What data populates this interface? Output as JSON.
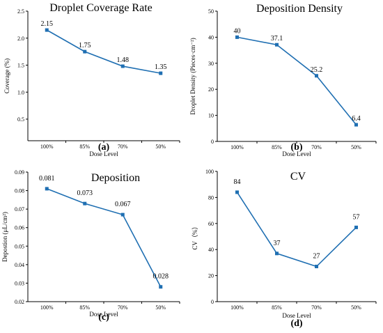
{
  "chart_data": [
    {
      "type": "line",
      "panel_label": "(a)",
      "title": "Droplet Coverage Rate",
      "xlabel": "Dose Level",
      "ylabel": "Coverage (%)",
      "categories": [
        "100%",
        "85%",
        "70%",
        "50%"
      ],
      "values": [
        2.15,
        1.75,
        1.48,
        1.35
      ],
      "data_labels": [
        "2.15",
        "1.75",
        "1.48",
        "1.35"
      ],
      "ylim": [
        0.1,
        2.5
      ],
      "yticks": [
        "0.5",
        "1.0",
        "1.5",
        "2.0",
        "2.5"
      ],
      "color": "#1f6fb2",
      "grid": false
    },
    {
      "type": "line",
      "panel_label": "(b)",
      "title": "Deposition Density",
      "xlabel": "Dose Level",
      "ylabel": "Droplet Density (Pieces·cm⁻²)",
      "categories": [
        "100%",
        "85%",
        "70%",
        "50%"
      ],
      "values": [
        40,
        37.1,
        25.2,
        6.4
      ],
      "data_labels": [
        "40",
        "37.1",
        "25.2",
        "6.4"
      ],
      "ylim": [
        0,
        50
      ],
      "yticks": [
        "0",
        "10",
        "20",
        "30",
        "40",
        "50"
      ],
      "color": "#1f6fb2",
      "grid": false
    },
    {
      "type": "line",
      "panel_label": "(c)",
      "title": "Deposition",
      "xlabel": "Dose Level",
      "ylabel": "Depostion (μL/cm²)",
      "categories": [
        "100%",
        "85%",
        "70%",
        "50%"
      ],
      "values": [
        0.081,
        0.073,
        0.067,
        0.028
      ],
      "data_labels": [
        "0.081",
        "0.073",
        "0.067",
        "0.028"
      ],
      "ylim": [
        0.02,
        0.09
      ],
      "yticks": [
        "0.02",
        "0.03",
        "0.04",
        "0.05",
        "0.06",
        "0.07",
        "0.08",
        "0.09"
      ],
      "color": "#1f6fb2",
      "grid": false
    },
    {
      "type": "line",
      "panel_label": "(d)",
      "title": "CV",
      "xlabel": "Dose Level",
      "ylabel": "CV（%）",
      "categories": [
        "100%",
        "85%",
        "70%",
        "50%"
      ],
      "values": [
        84,
        37,
        27,
        57
      ],
      "data_labels": [
        "84",
        "37",
        "27",
        "57"
      ],
      "ylim": [
        0,
        100
      ],
      "yticks": [
        "0",
        "20",
        "40",
        "60",
        "80",
        "100"
      ],
      "color": "#1f6fb2",
      "grid": false
    }
  ]
}
